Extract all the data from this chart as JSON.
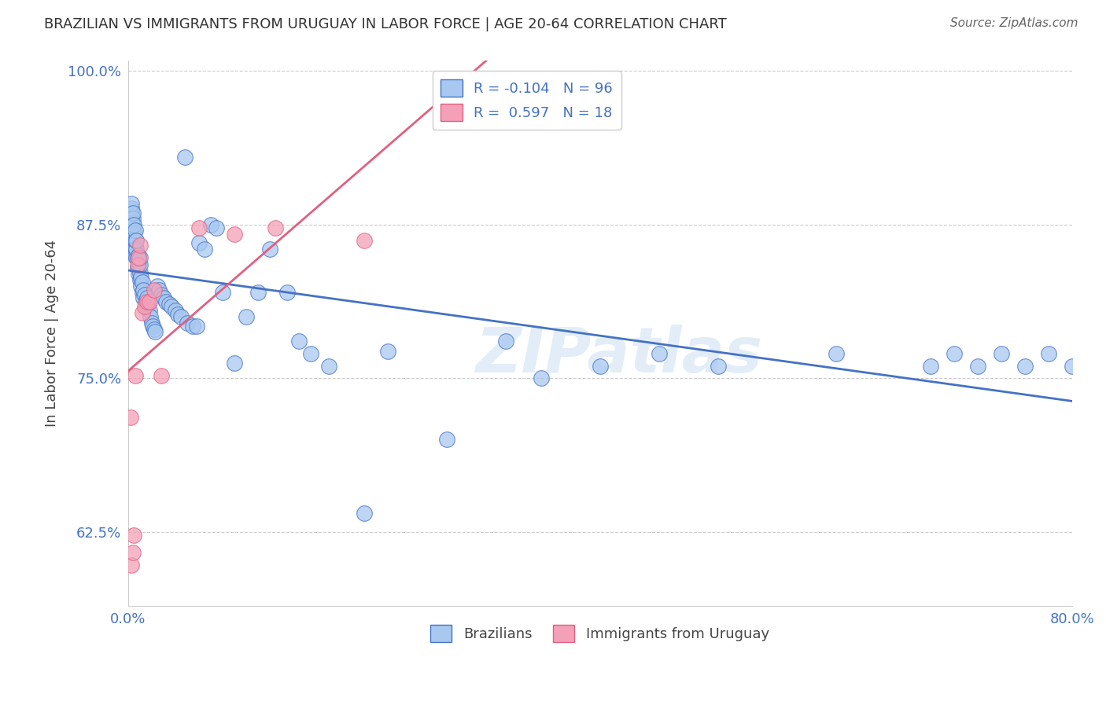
{
  "title": "BRAZILIAN VS IMMIGRANTS FROM URUGUAY IN LABOR FORCE | AGE 20-64 CORRELATION CHART",
  "source_text": "Source: ZipAtlas.com",
  "xlabel": "",
  "ylabel": "In Labor Force | Age 20-64",
  "xlim": [
    0.0,
    0.8
  ],
  "ylim": [
    0.565,
    1.008
  ],
  "xticks": [
    0.0,
    0.1,
    0.2,
    0.3,
    0.4,
    0.5,
    0.6,
    0.7,
    0.8
  ],
  "xticklabels": [
    "0.0%",
    "",
    "",
    "",
    "",
    "",
    "",
    "",
    "80.0%"
  ],
  "yticks": [
    0.625,
    0.75,
    0.875,
    1.0
  ],
  "yticklabels": [
    "62.5%",
    "75.0%",
    "87.5%",
    "100.0%"
  ],
  "blue_color": "#A8C8F0",
  "pink_color": "#F4A0B8",
  "blue_line_color": "#4472C4",
  "pink_line_color": "#E06080",
  "legend_label_blue": "R = -0.104   N = 96",
  "legend_label_pink": "R =  0.597   N = 18",
  "legend_label_blue_name": "Brazilians",
  "legend_label_pink_name": "Immigrants from Uruguay",
  "blue_scatter_x": [
    0.003,
    0.003,
    0.003,
    0.003,
    0.003,
    0.003,
    0.003,
    0.003,
    0.003,
    0.003,
    0.004,
    0.004,
    0.004,
    0.004,
    0.004,
    0.004,
    0.005,
    0.005,
    0.005,
    0.005,
    0.006,
    0.006,
    0.006,
    0.006,
    0.007,
    0.007,
    0.007,
    0.008,
    0.008,
    0.009,
    0.009,
    0.009,
    0.01,
    0.01,
    0.01,
    0.01,
    0.011,
    0.011,
    0.012,
    0.012,
    0.013,
    0.013,
    0.014,
    0.015,
    0.016,
    0.016,
    0.017,
    0.018,
    0.019,
    0.02,
    0.021,
    0.022,
    0.023,
    0.025,
    0.026,
    0.028,
    0.03,
    0.032,
    0.035,
    0.037,
    0.04,
    0.042,
    0.045,
    0.048,
    0.05,
    0.055,
    0.058,
    0.06,
    0.065,
    0.07,
    0.075,
    0.08,
    0.09,
    0.1,
    0.11,
    0.12,
    0.135,
    0.145,
    0.155,
    0.17,
    0.2,
    0.22,
    0.27,
    0.32,
    0.35,
    0.4,
    0.45,
    0.5,
    0.6,
    0.68,
    0.7,
    0.72,
    0.74,
    0.76,
    0.78,
    0.8
  ],
  "blue_scatter_y": [
    0.865,
    0.87,
    0.875,
    0.878,
    0.88,
    0.882,
    0.884,
    0.886,
    0.888,
    0.892,
    0.86,
    0.865,
    0.87,
    0.875,
    0.88,
    0.884,
    0.855,
    0.862,
    0.868,
    0.875,
    0.85,
    0.856,
    0.862,
    0.87,
    0.848,
    0.855,
    0.862,
    0.84,
    0.848,
    0.835,
    0.842,
    0.85,
    0.83,
    0.836,
    0.842,
    0.848,
    0.825,
    0.832,
    0.82,
    0.828,
    0.815,
    0.822,
    0.818,
    0.812,
    0.808,
    0.815,
    0.81,
    0.805,
    0.8,
    0.795,
    0.792,
    0.79,
    0.788,
    0.825,
    0.822,
    0.818,
    0.815,
    0.812,
    0.81,
    0.808,
    0.805,
    0.802,
    0.8,
    0.93,
    0.795,
    0.792,
    0.792,
    0.86,
    0.855,
    0.875,
    0.872,
    0.82,
    0.762,
    0.8,
    0.82,
    0.855,
    0.82,
    0.78,
    0.77,
    0.76,
    0.64,
    0.772,
    0.7,
    0.78,
    0.75,
    0.76,
    0.77,
    0.76,
    0.77,
    0.76,
    0.77,
    0.76,
    0.77,
    0.76,
    0.77,
    0.76
  ],
  "pink_scatter_x": [
    0.002,
    0.003,
    0.004,
    0.005,
    0.006,
    0.008,
    0.009,
    0.01,
    0.012,
    0.014,
    0.016,
    0.018,
    0.022,
    0.028,
    0.06,
    0.09,
    0.125,
    0.2
  ],
  "pink_scatter_y": [
    0.718,
    0.598,
    0.608,
    0.622,
    0.752,
    0.842,
    0.848,
    0.858,
    0.803,
    0.808,
    0.812,
    0.812,
    0.822,
    0.752,
    0.872,
    0.867,
    0.872,
    0.862
  ],
  "watermark": "ZIPatlas",
  "background_color": "#FFFFFF",
  "grid_color": "#CCCCCC"
}
